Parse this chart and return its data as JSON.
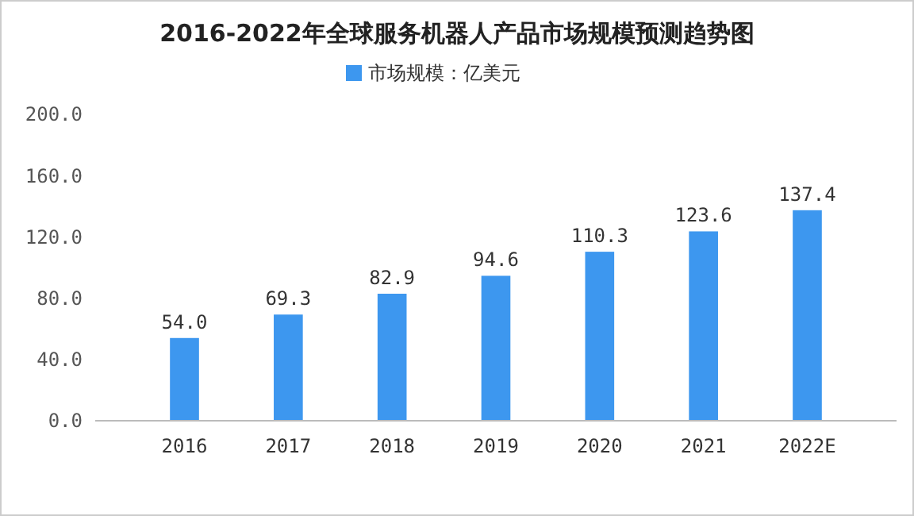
{
  "chart_data": {
    "type": "bar",
    "title": "2016-2022年全球服务机器人产品市场规模预测趋势图",
    "categories": [
      "2016",
      "2017",
      "2018",
      "2019",
      "2020",
      "2021",
      "2022E"
    ],
    "series": [
      {
        "name": "市场规模：亿美元",
        "color": "#3d97ef",
        "values": [
          54.0,
          69.3,
          82.9,
          94.6,
          110.3,
          123.6,
          137.4
        ],
        "value_labels": [
          "54.0",
          "69.3",
          "82.9",
          "94.6",
          "110.3",
          "123.6",
          "137.4"
        ]
      }
    ],
    "ylim": [
      0,
      200
    ],
    "yticks": [
      {
        "value": 0,
        "label": "0.0"
      },
      {
        "value": 40,
        "label": "40.0"
      },
      {
        "value": 80,
        "label": "80.0"
      },
      {
        "value": 120,
        "label": "120.0"
      },
      {
        "value": 160,
        "label": "160.0"
      },
      {
        "value": 200,
        "label": "200.0"
      }
    ],
    "legend": "top",
    "grid": false
  }
}
